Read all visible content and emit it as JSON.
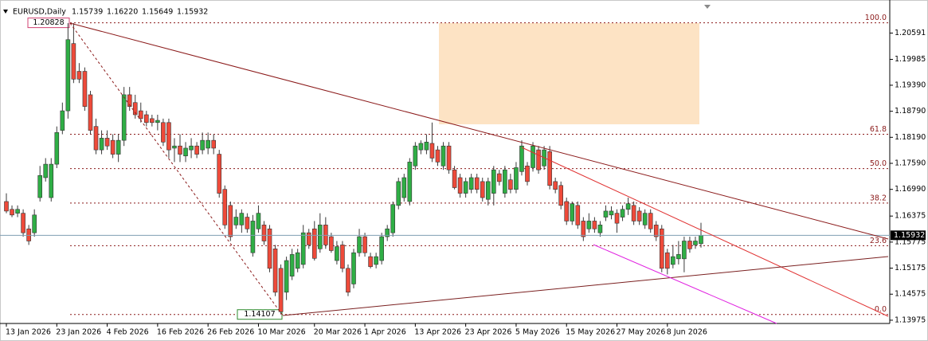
{
  "chart_data": {
    "type": "candlestick",
    "symbol": "EURUSD,Daily",
    "info_labels": [
      "1.15739",
      "1.16220",
      "1.15649",
      "1.15932"
    ],
    "up_color": "#2fae45",
    "down_color": "#ee4a3a",
    "wick_color": "#3a3a3a",
    "ylim": [
      1.139,
      1.2117
    ],
    "yticks": [
      1.20591,
      1.19985,
      {
        "value": 1.1939,
        "label": "1.19390"
      },
      {
        "value": 1.1879,
        "label": "1.18790"
      },
      {
        "value": 1.1819,
        "label": "1.18190"
      },
      {
        "value": 1.1759,
        "label": "1.17590"
      },
      {
        "value": 1.1699,
        "label": "1.16990"
      },
      1.16375,
      1.15775,
      1.15175,
      1.14575,
      1.13975
    ],
    "fib_levels": [
      {
        "value": 1.20828,
        "label": "100.0"
      },
      {
        "value": 1.18261,
        "label": "61.8"
      },
      {
        "value": 1.17468,
        "label": "50.0"
      },
      {
        "value": 1.16674,
        "label": "38.2"
      },
      {
        "value": 1.15693,
        "label": "23.6"
      },
      {
        "value": 1.14107,
        "label": "0.0"
      }
    ],
    "categories": [
      "13 Jan 2026",
      null,
      null,
      null,
      null,
      null,
      null,
      null,
      null,
      "23 Jan 2026",
      null,
      null,
      null,
      null,
      null,
      null,
      null,
      null,
      "4 Feb 2026",
      null,
      null,
      null,
      null,
      null,
      null,
      null,
      null,
      "16 Feb 2026",
      null,
      null,
      null,
      null,
      null,
      null,
      null,
      null,
      "26 Feb 2026",
      null,
      null,
      null,
      null,
      null,
      null,
      null,
      null,
      "10 Mar 2026",
      null,
      null,
      null,
      null,
      null,
      null,
      null,
      null,
      null,
      "20 Mar 2026",
      null,
      null,
      null,
      null,
      null,
      null,
      null,
      null,
      "1 Apr 2026",
      null,
      null,
      null,
      null,
      null,
      null,
      null,
      null,
      "13 Apr 2026",
      null,
      null,
      null,
      null,
      null,
      null,
      null,
      null,
      "23 Apr 2026",
      null,
      null,
      null,
      null,
      null,
      null,
      null,
      null,
      "5 May 2026",
      null,
      null,
      null,
      null,
      null,
      null,
      null,
      null,
      "15 May 2026",
      null,
      null,
      null,
      null,
      null,
      null,
      null,
      null,
      "27 May 2026",
      null,
      null,
      null,
      null,
      null,
      null,
      null,
      null,
      "8 Jun 2026",
      null,
      null,
      null,
      null,
      null,
      null
    ],
    "candles": [
      [
        1.1671,
        1.169,
        1.1644,
        1.1649
      ],
      [
        1.1653,
        1.1662,
        1.1635,
        1.164
      ],
      [
        1.1644,
        1.1662,
        1.1635,
        1.1653
      ],
      [
        1.1644,
        1.1653,
        1.159,
        1.1599
      ],
      [
        1.1608,
        1.1617,
        1.1571,
        1.158
      ],
      [
        1.1599,
        1.1653,
        1.159,
        1.164
      ],
      [
        1.168,
        1.1753,
        1.1671,
        1.1731
      ],
      [
        1.1726,
        1.1771,
        1.1717,
        1.1757
      ],
      [
        1.168,
        1.1771,
        1.1671,
        1.1757
      ],
      [
        1.1757,
        1.1844,
        1.1748,
        1.183
      ],
      [
        1.1835,
        1.1899,
        1.1826,
        1.188
      ],
      [
        1.188,
        1.2082,
        1.1862,
        1.2044
      ],
      [
        1.2035,
        1.2082,
        1.1944,
        1.1953
      ],
      [
        1.1971,
        1.199,
        1.1944,
        1.1953
      ],
      [
        1.1971,
        1.198,
        1.188,
        1.189
      ],
      [
        1.1917,
        1.1926,
        1.1826,
        1.1835
      ],
      [
        1.1844,
        1.1862,
        1.178,
        1.179
      ],
      [
        1.179,
        1.1835,
        1.178,
        1.1817
      ],
      [
        1.1817,
        1.1835,
        1.179,
        1.1799
      ],
      [
        1.1812,
        1.1826,
        1.1771,
        1.178
      ],
      [
        1.178,
        1.1826,
        1.1762,
        1.1812
      ],
      [
        1.1812,
        1.1935,
        1.1799,
        1.1917
      ],
      [
        1.1917,
        1.1935,
        1.188,
        1.189
      ],
      [
        1.1899,
        1.1917,
        1.1862,
        1.1871
      ],
      [
        1.188,
        1.1899,
        1.1853,
        1.1862
      ],
      [
        1.1871,
        1.188,
        1.1844,
        1.1853
      ],
      [
        1.1862,
        1.1871,
        1.1844,
        1.1853
      ],
      [
        1.1853,
        1.1871,
        1.1835,
        1.1858
      ],
      [
        1.1853,
        1.1862,
        1.1799,
        1.1808
      ],
      [
        1.1853,
        1.1862,
        1.1771,
        1.179
      ],
      [
        1.1794,
        1.1817,
        1.1762,
        1.1799
      ],
      [
        1.1799,
        1.1826,
        1.1762,
        1.178
      ],
      [
        1.1776,
        1.1808,
        1.1762,
        1.1794
      ],
      [
        1.179,
        1.1817,
        1.1771,
        1.1799
      ],
      [
        1.1799,
        1.1808,
        1.1771,
        1.178
      ],
      [
        1.179,
        1.183,
        1.178,
        1.1812
      ],
      [
        1.1794,
        1.183,
        1.178,
        1.1812
      ],
      [
        1.1812,
        1.1826,
        1.178,
        1.1794
      ],
      [
        1.178,
        1.179,
        1.168,
        1.169
      ],
      [
        1.1699,
        1.1708,
        1.1608,
        1.1617
      ],
      [
        1.1662,
        1.1671,
        1.158,
        1.159
      ],
      [
        1.1617,
        1.1653,
        1.1608,
        1.1635
      ],
      [
        1.1617,
        1.1653,
        1.1599,
        1.1644
      ],
      [
        1.1635,
        1.1644,
        1.1599,
        1.1608
      ],
      [
        1.1553,
        1.164,
        1.1544,
        1.1626
      ],
      [
        1.1608,
        1.1662,
        1.1599,
        1.1644
      ],
      [
        1.1617,
        1.1626,
        1.1571,
        1.158
      ],
      [
        1.1608,
        1.1617,
        1.1508,
        1.1517
      ],
      [
        1.1562,
        1.1571,
        1.1453,
        1.1462
      ],
      [
        1.1517,
        1.1526,
        1.1411,
        1.1417
      ],
      [
        1.1462,
        1.1544,
        1.1444,
        1.1535
      ],
      [
        1.1499,
        1.1562,
        1.149,
        1.1549
      ],
      [
        1.1517,
        1.1562,
        1.1508,
        1.1553
      ],
      [
        1.1526,
        1.1617,
        1.1517,
        1.1599
      ],
      [
        1.1599,
        1.1608,
        1.1562,
        1.1571
      ],
      [
        1.1608,
        1.1626,
        1.1535,
        1.154
      ],
      [
        1.1562,
        1.1644,
        1.1553,
        1.1617
      ],
      [
        1.1617,
        1.1635,
        1.1562,
        1.1571
      ],
      [
        1.159,
        1.1599,
        1.1553,
        1.1558
      ],
      [
        1.1535,
        1.158,
        1.1526,
        1.1567
      ],
      [
        1.1571,
        1.158,
        1.1508,
        1.1517
      ],
      [
        1.1517,
        1.1526,
        1.1453,
        1.1462
      ],
      [
        1.1481,
        1.1562,
        1.1471,
        1.1553
      ],
      [
        1.1553,
        1.1608,
        1.1544,
        1.159
      ],
      [
        1.159,
        1.1599,
        1.1544,
        1.1553
      ],
      [
        1.1544,
        1.1553,
        1.1517,
        1.1521
      ],
      [
        1.1526,
        1.1553,
        1.1517,
        1.1544
      ],
      [
        1.1535,
        1.1599,
        1.1526,
        1.159
      ],
      [
        1.159,
        1.1617,
        1.158,
        1.1608
      ],
      [
        1.1599,
        1.1671,
        1.159,
        1.1664
      ],
      [
        1.1662,
        1.1726,
        1.1653,
        1.1717
      ],
      [
        1.168,
        1.1735,
        1.1671,
        1.1726
      ],
      [
        1.1671,
        1.1771,
        1.1662,
        1.1762
      ],
      [
        1.1753,
        1.1808,
        1.1744,
        1.1799
      ],
      [
        1.179,
        1.1812,
        1.178,
        1.1805
      ],
      [
        1.179,
        1.1826,
        1.178,
        1.1808
      ],
      [
        1.1805,
        1.1853,
        1.1762,
        1.1771
      ],
      [
        1.179,
        1.1799,
        1.1753,
        1.1762
      ],
      [
        1.1753,
        1.1808,
        1.1744,
        1.1799
      ],
      [
        1.1799,
        1.1808,
        1.1735,
        1.1744
      ],
      [
        1.1744,
        1.1753,
        1.1699,
        1.1703
      ],
      [
        1.1726,
        1.1735,
        1.168,
        1.169
      ],
      [
        1.169,
        1.1726,
        1.168,
        1.1717
      ],
      [
        1.1699,
        1.1735,
        1.169,
        1.1726
      ],
      [
        1.1726,
        1.1735,
        1.169,
        1.1699
      ],
      [
        1.1717,
        1.1726,
        1.1671,
        1.168
      ],
      [
        1.1676,
        1.1726,
        1.1662,
        1.1717
      ],
      [
        1.169,
        1.1753,
        1.1662,
        1.1744
      ],
      [
        1.1735,
        1.1744,
        1.1708,
        1.1717
      ],
      [
        1.169,
        1.1753,
        1.168,
        1.1744
      ],
      [
        1.1721,
        1.1735,
        1.169,
        1.1699
      ],
      [
        1.1699,
        1.1762,
        1.169,
        1.1749
      ],
      [
        1.174,
        1.1812,
        1.1731,
        1.1799
      ],
      [
        1.1753,
        1.1762,
        1.1708,
        1.1717
      ],
      [
        1.1749,
        1.1808,
        1.174,
        1.1799
      ],
      [
        1.179,
        1.1799,
        1.1735,
        1.1744
      ],
      [
        1.1753,
        1.1799,
        1.1744,
        1.179
      ],
      [
        1.1786,
        1.1799,
        1.1699,
        1.1708
      ],
      [
        1.1717,
        1.1726,
        1.169,
        1.1699
      ],
      [
        1.1708,
        1.1717,
        1.1653,
        1.1662
      ],
      [
        1.1671,
        1.168,
        1.1617,
        1.1626
      ],
      [
        1.1626,
        1.1671,
        1.1617,
        1.1666
      ],
      [
        1.1662,
        1.1671,
        1.1608,
        1.1617
      ],
      [
        1.1626,
        1.1635,
        1.158,
        1.159
      ],
      [
        1.1608,
        1.1644,
        1.1599,
        1.1626
      ],
      [
        1.1626,
        1.1635,
        1.1599,
        1.1608
      ],
      [
        1.1599,
        1.1626,
        1.159,
        1.1617
      ],
      [
        1.1635,
        1.1662,
        1.1626,
        1.1649
      ],
      [
        1.164,
        1.166,
        1.163,
        1.1649
      ],
      [
        1.1644,
        1.1653,
        1.1599,
        1.1621
      ],
      [
        1.1635,
        1.1662,
        1.1626,
        1.1653
      ],
      [
        1.1653,
        1.168,
        1.164,
        1.1666
      ],
      [
        1.1662,
        1.1671,
        1.1617,
        1.1626
      ],
      [
        1.1649,
        1.1658,
        1.1617,
        1.1626
      ],
      [
        1.1617,
        1.1653,
        1.1608,
        1.1644
      ],
      [
        1.1644,
        1.1653,
        1.1599,
        1.1608
      ],
      [
        1.1617,
        1.1626,
        1.158,
        1.159
      ],
      [
        1.1608,
        1.1617,
        1.1508,
        1.1517
      ],
      [
        1.1553,
        1.1562,
        1.1503,
        1.1517
      ],
      [
        1.1526,
        1.1571,
        1.1517,
        1.1544
      ],
      [
        1.1539,
        1.158,
        1.1526,
        1.1549
      ],
      [
        1.1539,
        1.159,
        1.1508,
        1.158
      ],
      [
        1.158,
        1.159,
        1.1553,
        1.1562
      ],
      [
        1.1571,
        1.159,
        1.1562,
        1.158
      ],
      [
        1.15739,
        1.1622,
        1.15649,
        1.15932
      ]
    ]
  }
}
